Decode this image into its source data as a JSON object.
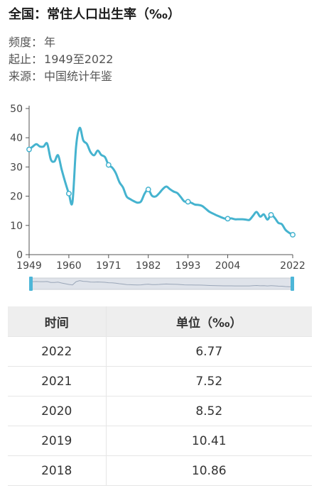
{
  "header": {
    "title": "全国：常住人口出生率（‰）",
    "frequency_label": "频度：",
    "frequency_value": "年",
    "range_label": "起止：",
    "range_value": "1949至2022",
    "source_label": "来源：",
    "source_value": "中国统计年鉴"
  },
  "colors": {
    "line": "#45b3cf",
    "slider": "#4db6d8"
  },
  "chart_data": {
    "type": "line",
    "x_ticks": [
      "1949",
      "1960",
      "1971",
      "1982",
      "1993",
      "2004",
      "2022"
    ],
    "y_ticks": [
      0,
      10,
      20,
      30,
      40,
      50
    ],
    "ylim": [
      0,
      50
    ],
    "xlim": [
      1949,
      2022
    ],
    "x": [
      1949,
      1950,
      1951,
      1952,
      1953,
      1954,
      1955,
      1956,
      1957,
      1958,
      1959,
      1960,
      1961,
      1962,
      1963,
      1964,
      1965,
      1966,
      1967,
      1968,
      1969,
      1970,
      1971,
      1972,
      1973,
      1974,
      1975,
      1976,
      1977,
      1978,
      1979,
      1980,
      1981,
      1982,
      1983,
      1984,
      1985,
      1986,
      1987,
      1988,
      1989,
      1990,
      1991,
      1992,
      1993,
      1994,
      1995,
      1996,
      1997,
      1998,
      1999,
      2000,
      2001,
      2002,
      2003,
      2004,
      2005,
      2006,
      2007,
      2008,
      2009,
      2010,
      2011,
      2012,
      2013,
      2014,
      2015,
      2016,
      2017,
      2018,
      2019,
      2020,
      2021,
      2022
    ],
    "y": [
      36.0,
      37.0,
      37.8,
      37.0,
      37.0,
      38.0,
      32.6,
      31.9,
      34.0,
      29.2,
      24.8,
      20.9,
      18.0,
      37.0,
      43.4,
      39.1,
      37.9,
      35.1,
      34.0,
      35.6,
      34.1,
      33.4,
      30.7,
      29.8,
      27.9,
      24.8,
      23.0,
      19.9,
      19.0,
      18.3,
      17.8,
      18.2,
      20.9,
      22.3,
      20.2,
      19.9,
      21.0,
      22.4,
      23.3,
      22.4,
      21.6,
      21.1,
      19.7,
      18.2,
      18.1,
      17.7,
      17.1,
      17.0,
      16.6,
      15.6,
      14.6,
      14.0,
      13.4,
      12.9,
      12.4,
      12.3,
      12.4,
      12.1,
      12.1,
      12.1,
      12.0,
      11.9,
      13.3,
      14.6,
      13.0,
      13.8,
      12.0,
      13.6,
      12.6,
      10.9,
      10.4,
      8.5,
      7.5,
      6.8
    ],
    "marked_x": [
      1949,
      1960,
      1971,
      1982,
      1993,
      2004,
      2016,
      2022
    ]
  },
  "table": {
    "headers": [
      "时间",
      "单位（‰）"
    ],
    "rows": [
      {
        "year": "2022",
        "value": "6.77"
      },
      {
        "year": "2021",
        "value": "7.52"
      },
      {
        "year": "2020",
        "value": "8.52"
      },
      {
        "year": "2019",
        "value": "10.41"
      },
      {
        "year": "2018",
        "value": "10.86"
      }
    ]
  }
}
